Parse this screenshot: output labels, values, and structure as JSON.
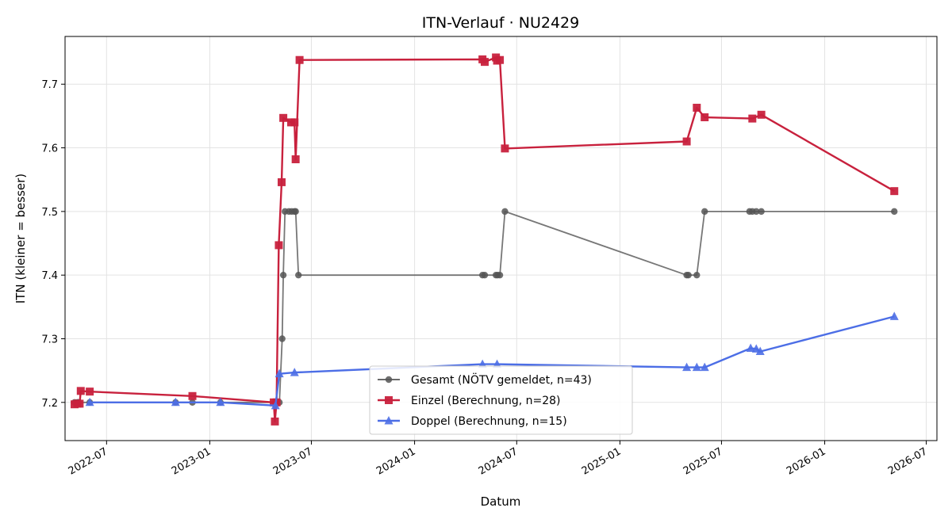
{
  "chart_data": {
    "type": "line",
    "title": "ITN-Verlauf · NU2429",
    "xlabel": "Datum",
    "ylabel": "ITN  (kleiner = besser)",
    "x_ticks": [
      "2022-07",
      "2023-01",
      "2023-07",
      "2024-01",
      "2024-07",
      "2025-01",
      "2025-07",
      "2026-01",
      "2026-07"
    ],
    "y_ticks": [
      "7.2",
      "7.3",
      "7.4",
      "7.5",
      "7.6",
      "7.7"
    ],
    "xlim": [
      "2022-04-18",
      "2026-07-20"
    ],
    "ylim": [
      7.14,
      7.775
    ],
    "grid": true,
    "legend_position": "bottom-center",
    "series": [
      {
        "name": "Gesamt (NÖTV gemeldet, n=43)",
        "color": "#555555",
        "marker": "circle",
        "x": [
          "2022-05-05",
          "2022-05-10",
          "2022-05-12",
          "2022-06-01",
          "2022-11-01",
          "2022-12-01",
          "2023-01-20",
          "2023-04-28",
          "2023-05-01",
          "2023-05-05",
          "2023-05-10",
          "2023-05-12",
          "2023-05-15",
          "2023-05-22",
          "2023-05-27",
          "2023-06-01",
          "2023-06-03",
          "2023-06-08",
          "2024-05-01",
          "2024-05-05",
          "2024-05-25",
          "2024-05-28",
          "2024-06-01",
          "2024-06-10",
          "2025-04-30",
          "2025-05-03",
          "2025-05-18",
          "2025-06-01",
          "2025-08-20",
          "2025-08-25",
          "2025-09-01",
          "2025-09-10",
          "2026-05-05"
        ],
        "y": [
          7.2,
          7.2,
          7.2,
          7.2,
          7.2,
          7.2,
          7.2,
          7.2,
          7.2,
          7.2,
          7.3,
          7.4,
          7.5,
          7.5,
          7.5,
          7.5,
          7.5,
          7.4,
          7.4,
          7.4,
          7.4,
          7.4,
          7.4,
          7.5,
          7.4,
          7.4,
          7.4,
          7.5,
          7.5,
          7.5,
          7.5,
          7.5,
          7.5
        ]
      },
      {
        "name": "Einzel (Berechnung, n=28)",
        "color": "#c8213d",
        "marker": "square",
        "x": [
          "2022-05-05",
          "2022-05-10",
          "2022-05-14",
          "2022-05-16",
          "2022-06-01",
          "2022-12-01",
          "2023-04-25",
          "2023-04-27",
          "2023-04-30",
          "2023-05-04",
          "2023-05-09",
          "2023-05-12",
          "2023-05-26",
          "2023-06-01",
          "2023-06-03",
          "2023-06-10",
          "2024-05-01",
          "2024-05-05",
          "2024-05-25",
          "2024-05-27",
          "2024-06-01",
          "2024-06-10",
          "2025-04-30",
          "2025-05-18",
          "2025-06-01",
          "2025-08-25",
          "2025-09-10",
          "2026-05-05"
        ],
        "y": [
          7.197,
          7.198,
          7.198,
          7.218,
          7.217,
          7.21,
          7.2,
          7.17,
          7.2,
          7.447,
          7.546,
          7.647,
          7.64,
          7.64,
          7.582,
          7.738,
          7.739,
          7.735,
          7.742,
          7.737,
          7.738,
          7.599,
          7.61,
          7.663,
          7.648,
          7.646,
          7.652,
          7.532
        ]
      },
      {
        "name": "Doppel (Berechnung, n=15)",
        "color": "#4c6ee6",
        "marker": "triangle",
        "x": [
          "2022-06-01",
          "2022-11-01",
          "2023-01-20",
          "2023-04-28",
          "2023-05-05",
          "2023-06-01",
          "2024-05-01",
          "2024-05-27",
          "2025-04-30",
          "2025-05-18",
          "2025-06-01",
          "2025-08-22",
          "2025-09-01",
          "2025-09-08",
          "2026-05-05"
        ],
        "y": [
          7.2,
          7.2,
          7.2,
          7.195,
          7.245,
          7.247,
          7.26,
          7.26,
          7.255,
          7.255,
          7.255,
          7.285,
          7.284,
          7.28,
          7.335
        ]
      }
    ]
  }
}
